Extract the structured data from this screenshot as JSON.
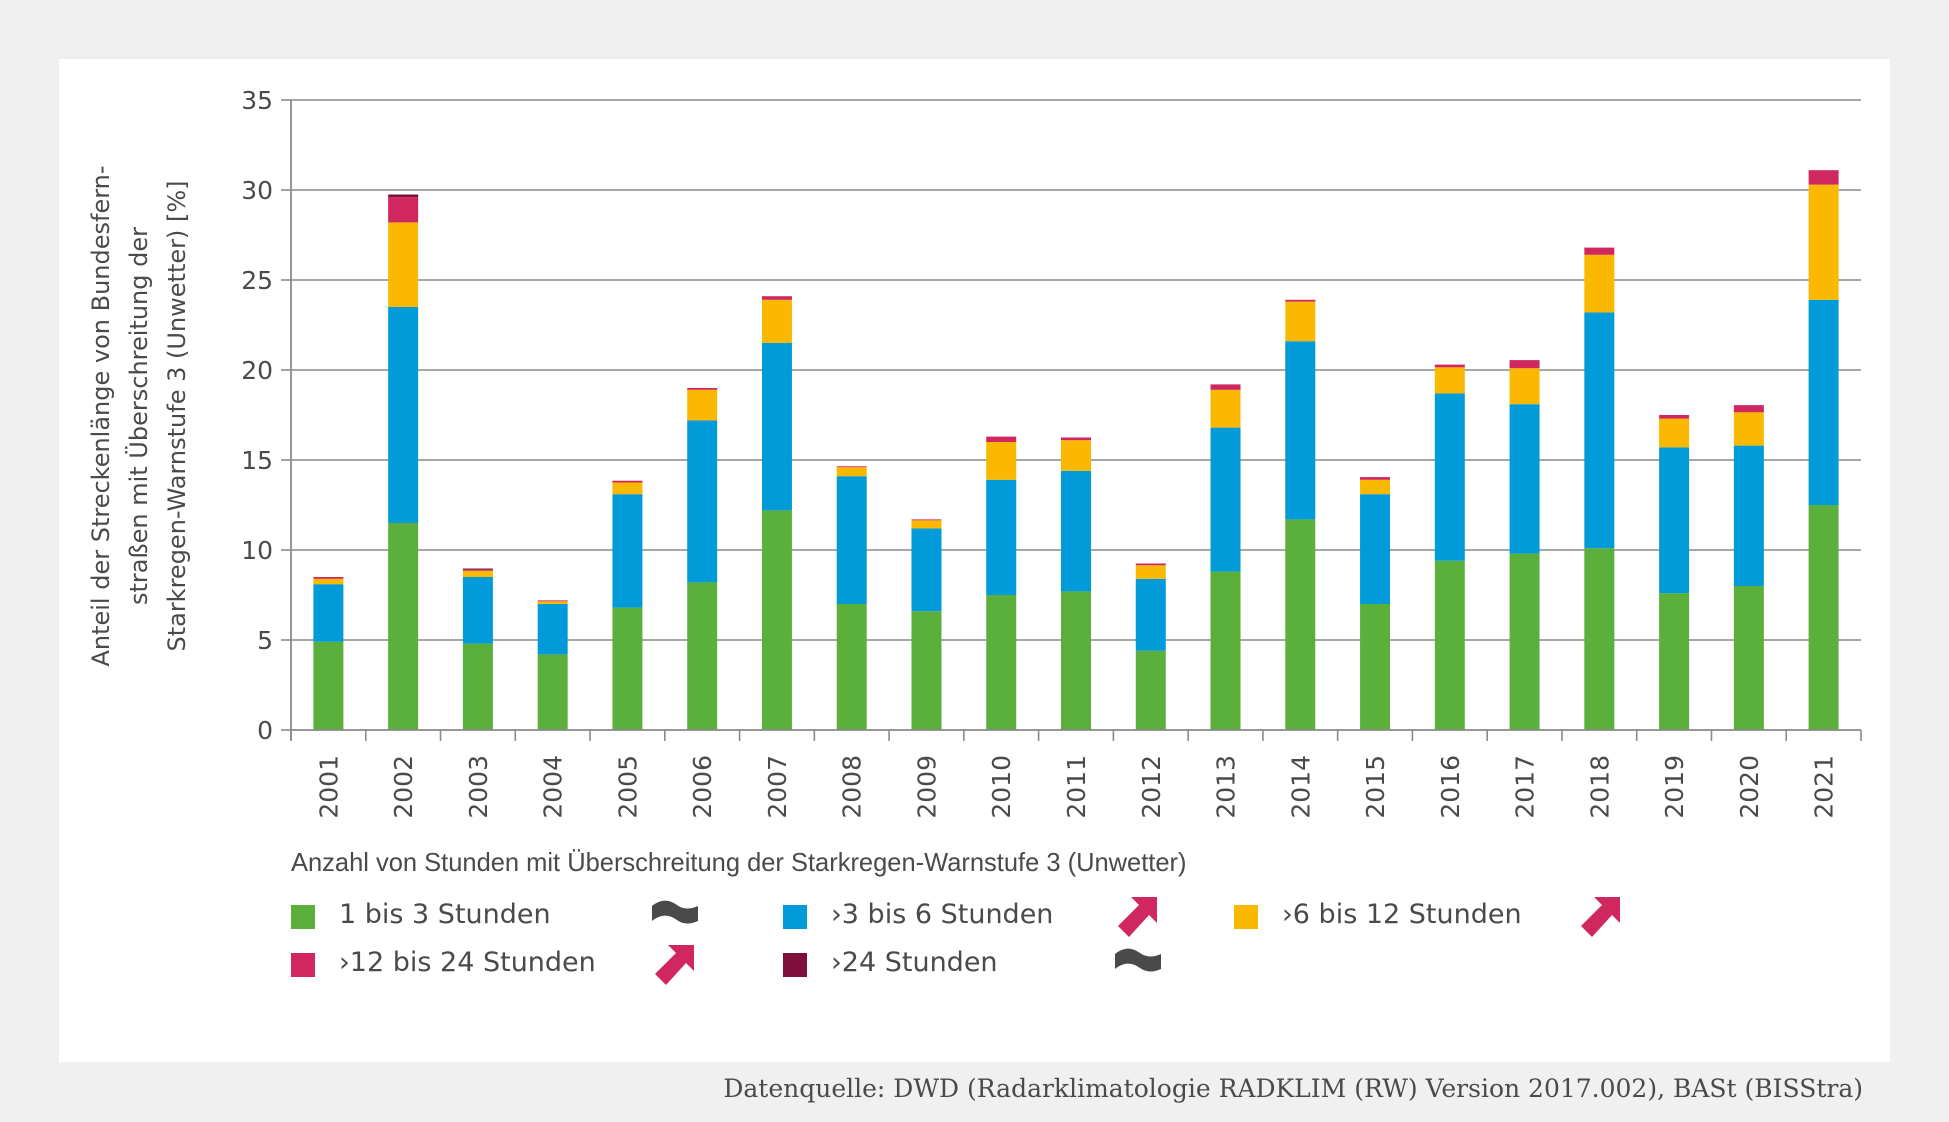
{
  "chart_data": {
    "type": "bar",
    "stacked": true,
    "title": "",
    "ylabel_lines": [
      "Anteil der Streckenlänge von Bundesfern-",
      "straßen mit Überschreitung der",
      "Starkregen-Warnstufe 3 (Unwetter) [%]"
    ],
    "xlabel": "",
    "ylim": [
      0,
      35
    ],
    "yticks": [
      0,
      5,
      10,
      15,
      20,
      25,
      30,
      35
    ],
    "grid": true,
    "categories": [
      "2001",
      "2002",
      "2003",
      "2004",
      "2005",
      "2006",
      "2007",
      "2008",
      "2009",
      "2010",
      "2011",
      "2012",
      "2013",
      "2014",
      "2015",
      "2016",
      "2017",
      "2018",
      "2019",
      "2020",
      "2021"
    ],
    "series": [
      {
        "name": "1 bis 3 Stunden",
        "color": "#5bb03c",
        "trend": "no-trend",
        "values": [
          4.9,
          11.5,
          4.8,
          4.2,
          6.8,
          8.2,
          12.2,
          7.0,
          6.6,
          7.5,
          7.7,
          4.4,
          8.8,
          11.7,
          7.0,
          9.4,
          9.8,
          10.1,
          7.6,
          8.0,
          12.5
        ]
      },
      {
        "name": "›3 bis 6 Stunden",
        "color": "#009bd8",
        "trend": "increasing",
        "values": [
          3.2,
          12.0,
          3.7,
          2.8,
          6.3,
          9.0,
          9.3,
          7.1,
          4.6,
          6.4,
          6.7,
          4.0,
          8.0,
          9.9,
          6.1,
          9.3,
          8.3,
          13.1,
          8.1,
          7.8,
          11.4
        ]
      },
      {
        "name": "›6 bis 12 Stunden",
        "color": "#fab900",
        "trend": "increasing",
        "values": [
          0.3,
          4.7,
          0.35,
          0.15,
          0.65,
          1.7,
          2.4,
          0.5,
          0.45,
          2.1,
          1.7,
          0.75,
          2.1,
          2.2,
          0.8,
          1.45,
          2.0,
          3.2,
          1.6,
          1.85,
          6.4
        ]
      },
      {
        "name": "›12 bis 24 Stunden",
        "color": "#d0275e",
        "trend": "increasing",
        "values": [
          0.1,
          1.4,
          0.05,
          0.05,
          0.1,
          0.1,
          0.2,
          0.05,
          0.05,
          0.3,
          0.15,
          0.1,
          0.3,
          0.1,
          0.15,
          0.15,
          0.45,
          0.4,
          0.2,
          0.4,
          0.8
        ]
      },
      {
        "name": "›24 Stunden",
        "color": "#7d0f3a",
        "trend": "no-trend",
        "values": [
          0,
          0.15,
          0.07,
          0,
          0,
          0,
          0,
          0,
          0,
          0,
          0,
          0,
          0,
          0,
          0,
          0,
          0,
          0,
          0,
          0,
          0
        ]
      }
    ],
    "legend": {
      "title": "Anzahl von Stunden mit Überschreitung der Starkregen-Warnstufe 3 (Unwetter)",
      "placement": "bottom",
      "items": [
        {
          "label": "1 bis 3 Stunden",
          "color": "#5bb03c",
          "trend_icon": "no-trend-icon"
        },
        {
          "label": "›3 bis 6 Stunden",
          "color": "#009bd8",
          "trend_icon": "trend-up-arrow-icon"
        },
        {
          "label": "›6 bis 12 Stunden",
          "color": "#fab900",
          "trend_icon": "trend-up-arrow-icon"
        },
        {
          "label": "›12 bis 24 Stunden",
          "color": "#d0275e",
          "trend_icon": "trend-up-arrow-icon"
        },
        {
          "label": "›24 Stunden",
          "color": "#7d0f3a",
          "trend_icon": "no-trend-icon"
        }
      ]
    },
    "source": "Datenquelle: DWD (Radarklimatologie RADKLIM (RW) Version 2017.002), BASt (BISStra)"
  },
  "colors": {
    "trend_up": "#d0275e",
    "trend_none": "#4a4a4a",
    "grid": "#8a8a8a",
    "text": "#4a4a4a"
  }
}
